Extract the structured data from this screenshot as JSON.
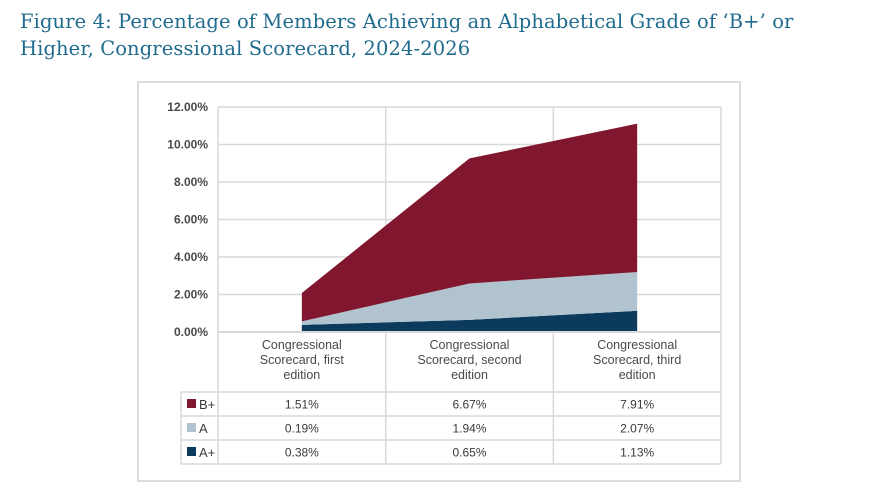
{
  "title": "Figure 4: Percentage of Members Achieving an Alphabetical Grade of ‘B+’ or Higher, Congressional Scorecard, 2024-2026",
  "chart_data": {
    "type": "area",
    "stacked": true,
    "title": "Figure 4: Percentage of Members Achieving an Alphabetical Grade of ‘B+’ or Higher, Congressional Scorecard, 2024-2026",
    "xlabel": "",
    "ylabel": "",
    "ylim": [
      0,
      12
    ],
    "yticks": [
      0,
      2,
      4,
      6,
      8,
      10,
      12
    ],
    "ytick_labels": [
      "0.00%",
      "2.00%",
      "4.00%",
      "6.00%",
      "8.00%",
      "10.00%",
      "12.00%"
    ],
    "grid": true,
    "categories": [
      [
        "Congressional",
        "Scorecard, first",
        "edition"
      ],
      [
        "Congressional",
        "Scorecard, second",
        "edition"
      ],
      [
        "Congressional",
        "Scorecard, third",
        "edition"
      ]
    ],
    "series": [
      {
        "name": "A+",
        "color": "#0b3a5c",
        "values": [
          0.38,
          0.65,
          1.13
        ],
        "labels": [
          "0.38%",
          "0.65%",
          "1.13%"
        ]
      },
      {
        "name": "A",
        "color": "#b0c3cf",
        "values": [
          0.19,
          1.94,
          2.07
        ],
        "labels": [
          "0.19%",
          "1.94%",
          "2.07%"
        ]
      },
      {
        "name": "B+",
        "color": "#80172e",
        "values": [
          1.51,
          6.67,
          7.91
        ],
        "labels": [
          "1.51%",
          "6.67%",
          "7.91%"
        ]
      }
    ],
    "table_row_order": [
      "B+",
      "A",
      "A+"
    ],
    "legend": "data-table"
  }
}
